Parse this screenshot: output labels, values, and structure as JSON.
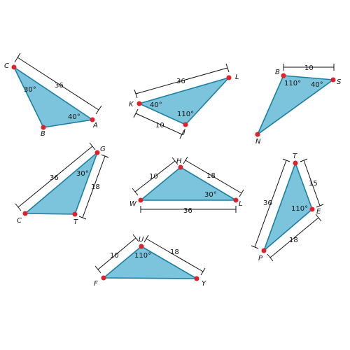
{
  "triangles": [
    {
      "id": "abc",
      "vertices": [
        {
          "label": "C"
        },
        {
          "label": "B"
        },
        {
          "label": "A"
        }
      ],
      "sides": [
        {
          "value": "36"
        }
      ],
      "angles": [
        {
          "value": "30°"
        },
        {
          "value": "40°"
        }
      ]
    },
    {
      "id": "kjl",
      "vertices": [
        {
          "label": "K"
        },
        {
          "label": "J"
        },
        {
          "label": "L"
        }
      ],
      "sides": [
        {
          "value": "36"
        },
        {
          "value": "10"
        }
      ],
      "angles": [
        {
          "value": "40°"
        },
        {
          "value": "110°"
        }
      ]
    },
    {
      "id": "bsn",
      "vertices": [
        {
          "label": "B"
        },
        {
          "label": "S"
        },
        {
          "label": "N"
        }
      ],
      "sides": [
        {
          "value": "10"
        }
      ],
      "angles": [
        {
          "value": "110°"
        },
        {
          "value": "40°"
        }
      ]
    },
    {
      "id": "gct",
      "vertices": [
        {
          "label": "G"
        },
        {
          "label": "C"
        },
        {
          "label": "T"
        }
      ],
      "sides": [
        {
          "value": "36"
        },
        {
          "value": "18"
        }
      ],
      "angles": [
        {
          "value": "30°"
        }
      ]
    },
    {
      "id": "hwl",
      "vertices": [
        {
          "label": "H"
        },
        {
          "label": "W"
        },
        {
          "label": "L"
        }
      ],
      "sides": [
        {
          "value": "10"
        },
        {
          "value": "18"
        },
        {
          "value": "36"
        }
      ],
      "angles": [
        {
          "value": "30°"
        }
      ]
    },
    {
      "id": "tep",
      "vertices": [
        {
          "label": "T"
        },
        {
          "label": "E"
        },
        {
          "label": "P"
        }
      ],
      "sides": [
        {
          "value": "36"
        },
        {
          "value": "15"
        },
        {
          "value": "18"
        }
      ],
      "angles": [
        {
          "value": "110°"
        }
      ]
    },
    {
      "id": "ufy",
      "vertices": [
        {
          "label": "U"
        },
        {
          "label": "F"
        },
        {
          "label": "Y"
        }
      ],
      "sides": [
        {
          "value": "10"
        },
        {
          "value": "18"
        }
      ],
      "angles": [
        {
          "value": "110°"
        }
      ]
    }
  ]
}
